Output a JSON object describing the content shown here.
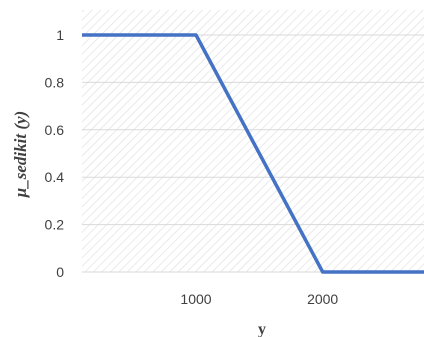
{
  "chart_data": {
    "type": "line",
    "title": "",
    "xlabel": "y",
    "ylabel": "μ_sedikit (y)",
    "xlim": [
      100,
      2800
    ],
    "ylim": [
      0,
      1
    ],
    "x_ticks": [
      1000,
      2000
    ],
    "x_tick_labels": [
      "1000",
      "2000"
    ],
    "y_ticks": [
      0,
      0.2,
      0.4,
      0.6,
      0.8,
      1
    ],
    "y_tick_labels": [
      "0",
      "0.2",
      "0.4",
      "0.6",
      "0.8",
      "1"
    ],
    "grid": true,
    "legend": "none",
    "series": [
      {
        "x": [
          100,
          1000,
          2000,
          2800
        ],
        "y": [
          1,
          1,
          0,
          0
        ],
        "color": "#4472c4"
      }
    ],
    "plot_background": "hatched-light-gray"
  }
}
